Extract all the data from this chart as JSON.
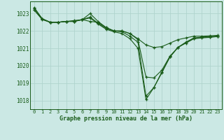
{
  "title": "Graphe pression niveau de la mer (hPa)",
  "background_color": "#cbe8e4",
  "grid_color": "#b0d4ce",
  "line_color": "#1a5c1a",
  "xlim": [
    -0.5,
    23.5
  ],
  "ylim": [
    1017.5,
    1023.7
  ],
  "yticks": [
    1018,
    1019,
    1020,
    1021,
    1022,
    1023
  ],
  "xticks": [
    0,
    1,
    2,
    3,
    4,
    5,
    6,
    7,
    8,
    9,
    10,
    11,
    12,
    13,
    14,
    15,
    16,
    17,
    18,
    19,
    20,
    21,
    22,
    23
  ],
  "series": [
    [
      1023.3,
      1022.7,
      1022.5,
      1022.5,
      1022.55,
      1022.6,
      1022.65,
      1022.55,
      1022.5,
      1022.2,
      1022.0,
      1022.0,
      1021.85,
      1021.55,
      1021.2,
      1021.05,
      1021.1,
      1021.3,
      1021.5,
      1021.6,
      1021.7,
      1021.7,
      1021.72,
      1021.75
    ],
    [
      1023.2,
      1022.65,
      1022.5,
      1022.5,
      1022.55,
      1022.55,
      1022.65,
      1023.0,
      1022.55,
      1022.2,
      1022.0,
      1021.95,
      1021.7,
      1021.35,
      1018.25,
      1018.75,
      1019.65,
      1020.5,
      1021.05,
      1021.35,
      1021.6,
      1021.65,
      1021.68,
      1021.7
    ],
    [
      1023.35,
      1022.7,
      1022.5,
      1022.5,
      1022.55,
      1022.55,
      1022.65,
      1022.8,
      1022.45,
      1022.15,
      1022.0,
      1022.0,
      1021.85,
      1021.5,
      1019.35,
      1019.3,
      1019.75,
      1020.55,
      1021.05,
      1021.35,
      1021.58,
      1021.63,
      1021.65,
      1021.7
    ],
    [
      1023.2,
      1022.7,
      1022.5,
      1022.5,
      1022.55,
      1022.55,
      1022.65,
      1022.75,
      1022.4,
      1022.1,
      1021.95,
      1021.85,
      1021.55,
      1021.0,
      1018.05,
      1018.75,
      1019.6,
      1020.5,
      1021.05,
      1021.3,
      1021.55,
      1021.6,
      1021.63,
      1021.68
    ]
  ]
}
